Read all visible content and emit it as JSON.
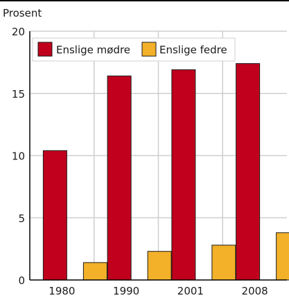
{
  "colors": {
    "series_1": "#c0001c",
    "series_2": "#f2b128",
    "grid": "#cfcfcf",
    "axis": "#000000",
    "text": "#1a1a1a",
    "bar_stroke": "#1a1a1a"
  },
  "chart_data": {
    "type": "bar",
    "title": "",
    "ylabel": "Prosent",
    "xlabel": "",
    "categories": [
      "1980",
      "1990",
      "2001",
      "2008"
    ],
    "ylim": [
      0,
      20
    ],
    "yticks": [
      0,
      5,
      10,
      15,
      20
    ],
    "grid": true,
    "legend_position": "top",
    "series": [
      {
        "name": "Enslige mødre",
        "values": [
          10.4,
          16.4,
          16.9,
          17.4
        ]
      },
      {
        "name": "Enslige fedre",
        "values": [
          1.4,
          2.3,
          2.8,
          3.8
        ]
      }
    ]
  }
}
